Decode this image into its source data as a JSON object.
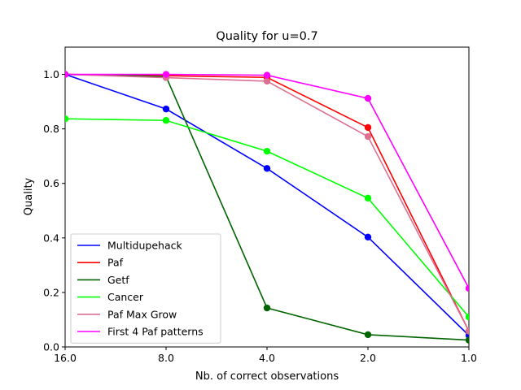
{
  "chart_data": {
    "type": "line",
    "title": "Quality for u=0.7",
    "xlabel": "Nb. of correct observations",
    "ylabel": "Quality",
    "x": [
      16.0,
      8.0,
      4.0,
      2.0,
      1.0
    ],
    "x_tick_labels": [
      "16.0",
      "8.0",
      "4.0",
      "2.0",
      "1.0"
    ],
    "x_scale": "log2-reversed",
    "ylim": [
      0.0,
      1.1
    ],
    "y_ticks": [
      0.0,
      0.2,
      0.4,
      0.6,
      0.8,
      1.0
    ],
    "y_tick_labels": [
      "0.0",
      "0.2",
      "0.4",
      "0.6",
      "0.8",
      "1.0"
    ],
    "grid": false,
    "legend_position": "lower-left",
    "series": [
      {
        "name": "Multidupehack",
        "color": "#0000ff",
        "values": [
          1.0,
          0.873,
          0.655,
          0.403,
          0.042
        ]
      },
      {
        "name": "Paf",
        "color": "#ff0000",
        "values": [
          1.0,
          0.995,
          0.989,
          0.805,
          0.058
        ]
      },
      {
        "name": "Getf",
        "color": "#006400",
        "values": [
          1.0,
          0.992,
          0.143,
          0.045,
          0.025
        ]
      },
      {
        "name": "Cancer",
        "color": "#00ff00",
        "values": [
          0.837,
          0.831,
          0.718,
          0.546,
          0.11
        ]
      },
      {
        "name": "Paf Max Grow",
        "color": "#db7093",
        "values": [
          1.0,
          0.988,
          0.975,
          0.772,
          0.058
        ]
      },
      {
        "name": "First 4 Paf patterns",
        "color": "#ff00ff",
        "values": [
          1.0,
          1.0,
          0.997,
          0.912,
          0.215
        ]
      }
    ]
  }
}
